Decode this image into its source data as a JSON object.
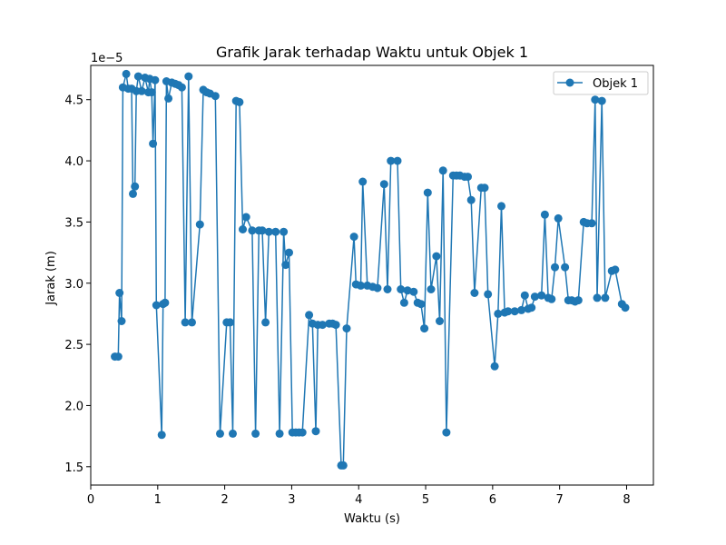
{
  "chart_data": {
    "type": "line",
    "title": "Grafik Jarak terhadap Waktu untuk Objek 1",
    "xlabel": "Waktu (s)",
    "ylabel": "Jarak (m)",
    "y_offset_label": "1e−5",
    "y_scale_factor": 1e-05,
    "xlim": [
      0,
      8.4
    ],
    "ylim": [
      1.35,
      4.78
    ],
    "xticks": [
      0,
      1,
      2,
      3,
      4,
      5,
      6,
      7,
      8
    ],
    "xtick_labels": [
      "0",
      "1",
      "2",
      "3",
      "4",
      "5",
      "6",
      "7",
      "8"
    ],
    "yticks": [
      1.5,
      2.0,
      2.5,
      3.0,
      3.5,
      4.0,
      4.5
    ],
    "ytick_labels": [
      "1.5",
      "2.0",
      "2.5",
      "3.0",
      "3.5",
      "4.0",
      "4.5"
    ],
    "grid": false,
    "legend_position": "top-right",
    "series": [
      {
        "name": "Objek 1",
        "color": "#1f77b4",
        "marker": "circle",
        "points": [
          [
            0.36,
            2.4
          ],
          [
            0.41,
            2.4
          ],
          [
            0.43,
            2.92
          ],
          [
            0.46,
            2.69
          ],
          [
            0.48,
            4.6
          ],
          [
            0.53,
            4.71
          ],
          [
            0.56,
            4.59
          ],
          [
            0.61,
            4.59
          ],
          [
            0.63,
            3.73
          ],
          [
            0.66,
            3.79
          ],
          [
            0.68,
            4.57
          ],
          [
            0.71,
            4.69
          ],
          [
            0.76,
            4.57
          ],
          [
            0.81,
            4.68
          ],
          [
            0.86,
            4.56
          ],
          [
            0.88,
            4.67
          ],
          [
            0.91,
            4.56
          ],
          [
            0.93,
            4.14
          ],
          [
            0.96,
            4.66
          ],
          [
            0.98,
            2.82
          ],
          [
            1.06,
            1.76
          ],
          [
            1.08,
            2.83
          ],
          [
            1.11,
            2.84
          ],
          [
            1.13,
            4.65
          ],
          [
            1.16,
            4.51
          ],
          [
            1.21,
            4.64
          ],
          [
            1.26,
            4.63
          ],
          [
            1.31,
            4.62
          ],
          [
            1.36,
            4.6
          ],
          [
            1.41,
            2.68
          ],
          [
            1.46,
            4.69
          ],
          [
            1.51,
            2.68
          ],
          [
            1.63,
            3.48
          ],
          [
            1.68,
            4.58
          ],
          [
            1.73,
            4.56
          ],
          [
            1.78,
            4.55
          ],
          [
            1.86,
            4.53
          ],
          [
            1.93,
            1.77
          ],
          [
            2.03,
            2.68
          ],
          [
            2.08,
            2.68
          ],
          [
            2.12,
            1.77
          ],
          [
            2.17,
            4.49
          ],
          [
            2.22,
            4.48
          ],
          [
            2.27,
            3.44
          ],
          [
            2.32,
            3.54
          ],
          [
            2.41,
            3.43
          ],
          [
            2.46,
            1.77
          ],
          [
            2.51,
            3.43
          ],
          [
            2.56,
            3.43
          ],
          [
            2.61,
            2.68
          ],
          [
            2.66,
            3.42
          ],
          [
            2.76,
            3.42
          ],
          [
            2.82,
            1.77
          ],
          [
            2.88,
            3.42
          ],
          [
            2.91,
            3.15
          ],
          [
            2.96,
            3.25
          ],
          [
            3.01,
            1.78
          ],
          [
            3.06,
            1.78
          ],
          [
            3.11,
            1.78
          ],
          [
            3.16,
            1.78
          ],
          [
            3.26,
            2.74
          ],
          [
            3.31,
            2.67
          ],
          [
            3.36,
            1.79
          ],
          [
            3.39,
            2.66
          ],
          [
            3.46,
            2.66
          ],
          [
            3.56,
            2.67
          ],
          [
            3.61,
            2.67
          ],
          [
            3.66,
            2.66
          ],
          [
            3.74,
            1.51
          ],
          [
            3.77,
            1.51
          ],
          [
            3.82,
            2.63
          ],
          [
            3.93,
            3.38
          ],
          [
            3.96,
            2.99
          ],
          [
            4.03,
            2.98
          ],
          [
            4.06,
            3.83
          ],
          [
            4.13,
            2.98
          ],
          [
            4.21,
            2.97
          ],
          [
            4.28,
            2.96
          ],
          [
            4.38,
            3.81
          ],
          [
            4.43,
            2.95
          ],
          [
            4.48,
            4.0
          ],
          [
            4.58,
            4.0
          ],
          [
            4.63,
            2.95
          ],
          [
            4.68,
            2.84
          ],
          [
            4.73,
            2.94
          ],
          [
            4.82,
            2.93
          ],
          [
            4.88,
            2.84
          ],
          [
            4.93,
            2.83
          ],
          [
            4.98,
            2.63
          ],
          [
            5.03,
            3.74
          ],
          [
            5.08,
            2.95
          ],
          [
            5.16,
            3.22
          ],
          [
            5.21,
            2.69
          ],
          [
            5.26,
            3.92
          ],
          [
            5.31,
            1.78
          ],
          [
            5.41,
            3.88
          ],
          [
            5.46,
            3.88
          ],
          [
            5.51,
            3.88
          ],
          [
            5.58,
            3.87
          ],
          [
            5.63,
            3.87
          ],
          [
            5.68,
            3.68
          ],
          [
            5.73,
            2.92
          ],
          [
            5.83,
            3.78
          ],
          [
            5.88,
            3.78
          ],
          [
            5.93,
            2.91
          ],
          [
            6.03,
            2.32
          ],
          [
            6.08,
            2.75
          ],
          [
            6.13,
            3.63
          ],
          [
            6.18,
            2.76
          ],
          [
            6.23,
            2.77
          ],
          [
            6.33,
            2.77
          ],
          [
            6.43,
            2.78
          ],
          [
            6.48,
            2.9
          ],
          [
            6.53,
            2.79
          ],
          [
            6.58,
            2.8
          ],
          [
            6.63,
            2.89
          ],
          [
            6.73,
            2.9
          ],
          [
            6.78,
            3.56
          ],
          [
            6.83,
            2.88
          ],
          [
            6.88,
            2.87
          ],
          [
            6.93,
            3.13
          ],
          [
            6.98,
            3.53
          ],
          [
            7.08,
            3.13
          ],
          [
            7.13,
            2.86
          ],
          [
            7.18,
            2.86
          ],
          [
            7.23,
            2.85
          ],
          [
            7.28,
            2.86
          ],
          [
            7.36,
            3.5
          ],
          [
            7.41,
            3.49
          ],
          [
            7.48,
            3.49
          ],
          [
            7.53,
            4.5
          ],
          [
            7.56,
            2.88
          ],
          [
            7.63,
            4.49
          ],
          [
            7.68,
            2.88
          ],
          [
            7.78,
            3.1
          ],
          [
            7.83,
            3.11
          ],
          [
            7.93,
            2.83
          ],
          [
            7.98,
            2.8
          ]
        ]
      }
    ]
  }
}
